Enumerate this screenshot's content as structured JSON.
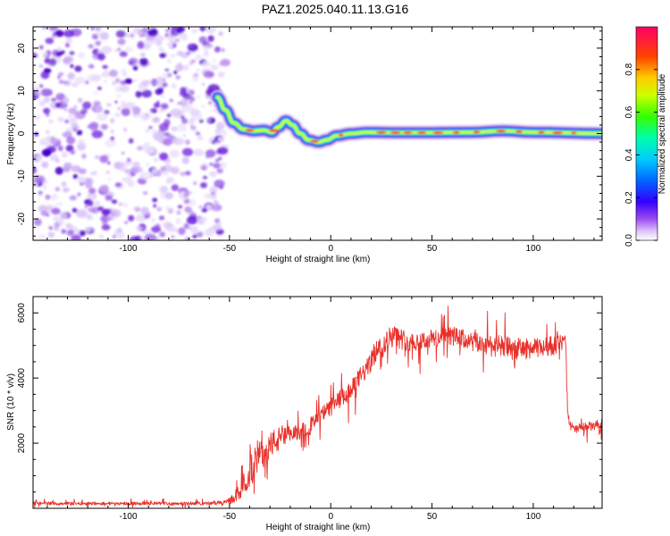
{
  "title": "PAZ1.2025.040.11.13.G16",
  "chart_data": [
    {
      "type": "heatmap",
      "name": "spectrogram",
      "xlabel": "Height of straight line (km)",
      "ylabel": "Frequency (Hz)",
      "xlim": [
        -147,
        134
      ],
      "ylim": [
        -25,
        25
      ],
      "xticks": [
        "-100",
        "-50",
        "0",
        "50",
        "100"
      ],
      "xtick_values": [
        -100,
        -50,
        0,
        50,
        100
      ],
      "yticks": [
        "20",
        "10",
        "0",
        "-10",
        "-20"
      ],
      "ytick_values": [
        20,
        10,
        0,
        -10,
        -20
      ],
      "noise_region_x": [
        -147,
        -52
      ],
      "signal_track": [
        {
          "x": -56,
          "y": 8.5
        },
        {
          "x": -52,
          "y": 5.5
        },
        {
          "x": -48,
          "y": 2.5
        },
        {
          "x": -43,
          "y": 1.0
        },
        {
          "x": -38,
          "y": 0.6
        },
        {
          "x": -33,
          "y": 0.8
        },
        {
          "x": -29,
          "y": 0.3
        },
        {
          "x": -26,
          "y": 1.5
        },
        {
          "x": -22,
          "y": 3.0
        },
        {
          "x": -19,
          "y": 2.0
        },
        {
          "x": -15,
          "y": 0.0
        },
        {
          "x": -11,
          "y": -1.5
        },
        {
          "x": -6,
          "y": -2.0
        },
        {
          "x": -2,
          "y": -1.5
        },
        {
          "x": 3,
          "y": -0.5
        },
        {
          "x": 10,
          "y": 0.0
        },
        {
          "x": 18,
          "y": 0.3
        },
        {
          "x": 30,
          "y": 0.2
        },
        {
          "x": 50,
          "y": 0.2
        },
        {
          "x": 70,
          "y": 0.3
        },
        {
          "x": 85,
          "y": 0.6
        },
        {
          "x": 100,
          "y": 0.3
        },
        {
          "x": 134,
          "y": 0.0
        }
      ],
      "colorbar": {
        "label": "Normalized spectral amplitude",
        "range": [
          0,
          1
        ],
        "ticks": [
          "0.0",
          "0.2",
          "0.4",
          "0.6",
          "0.8"
        ],
        "tick_values": [
          0,
          0.2,
          0.4,
          0.6,
          0.8
        ],
        "colors": [
          "#ffffff",
          "#d8bff5",
          "#8a2be2",
          "#3300ff",
          "#0099ff",
          "#00ffff",
          "#00ff66",
          "#ccff00",
          "#ffcc00",
          "#ff3300",
          "#ff0066"
        ]
      }
    },
    {
      "type": "line",
      "name": "snr",
      "xlabel": "Height of straight line (km)",
      "ylabel": "SNR (10 * v/v)",
      "xlim": [
        -147,
        134
      ],
      "ylim": [
        0,
        6500
      ],
      "xticks": [
        "-100",
        "-50",
        "0",
        "50",
        "100"
      ],
      "xtick_values": [
        -100,
        -50,
        0,
        50,
        100
      ],
      "yticks": [
        "2000",
        "4000",
        "6000"
      ],
      "ytick_values": [
        2000,
        4000,
        6000
      ],
      "color": "#e8302a",
      "x": [
        -147,
        -120,
        -90,
        -60,
        -52,
        -48,
        -44,
        -41,
        -38,
        -35,
        -32,
        -29,
        -26,
        -22,
        -18,
        -14,
        -10,
        -6,
        -2,
        2,
        6,
        10,
        14,
        18,
        22,
        26,
        30,
        40,
        50,
        60,
        70,
        80,
        90,
        100,
        110,
        116,
        117,
        118,
        120,
        124,
        128,
        134
      ],
      "y": [
        150,
        150,
        150,
        150,
        180,
        300,
        600,
        1000,
        1500,
        1600,
        1800,
        2000,
        2100,
        2200,
        2300,
        2400,
        2500,
        2800,
        3000,
        3200,
        3400,
        3600,
        4000,
        4300,
        4800,
        5000,
        5300,
        5100,
        5200,
        5300,
        5100,
        5000,
        4900,
        4900,
        5000,
        5100,
        3000,
        2600,
        2400,
        2500,
        2500,
        2600
      ],
      "noise_amplitude": [
        50,
        50,
        50,
        50,
        60,
        150,
        300,
        450,
        600,
        500,
        450,
        400,
        400,
        300,
        250,
        250,
        250,
        250,
        250,
        300,
        300,
        300,
        300,
        300,
        350,
        350,
        350,
        300,
        300,
        300,
        300,
        350,
        350,
        300,
        300,
        250,
        200,
        150,
        150,
        150,
        150,
        150
      ]
    }
  ]
}
